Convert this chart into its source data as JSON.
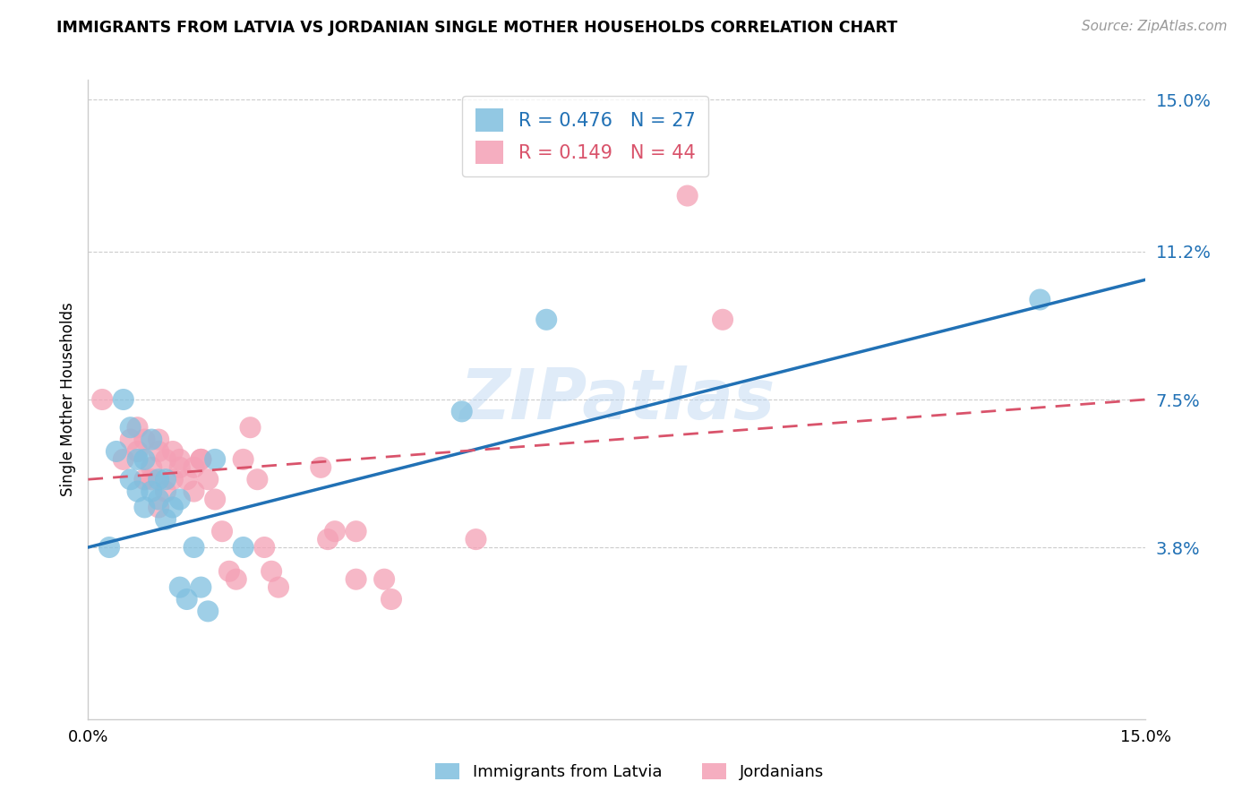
{
  "title": "IMMIGRANTS FROM LATVIA VS JORDANIAN SINGLE MOTHER HOUSEHOLDS CORRELATION CHART",
  "source": "Source: ZipAtlas.com",
  "ylabel": "Single Mother Households",
  "xlim": [
    0.0,
    0.15
  ],
  "ylim": [
    -0.01,
    0.155
  ],
  "plot_ylim": [
    -0.005,
    0.155
  ],
  "ytick_vals": [
    0.038,
    0.075,
    0.112,
    0.15
  ],
  "ytick_labels": [
    "3.8%",
    "7.5%",
    "11.2%",
    "15.0%"
  ],
  "blue_color": "#7fbfdf",
  "pink_color": "#f4a0b5",
  "blue_line_color": "#2171b5",
  "pink_line_color": "#d9536b",
  "legend_R_blue": "0.476",
  "legend_N_blue": "27",
  "legend_R_pink": "0.149",
  "legend_N_pink": "44",
  "legend_label_blue": "Immigrants from Latvia",
  "legend_label_pink": "Jordanians",
  "watermark": "ZIPatlas",
  "blue_points_x": [
    0.003,
    0.004,
    0.005,
    0.006,
    0.006,
    0.007,
    0.007,
    0.008,
    0.008,
    0.009,
    0.009,
    0.01,
    0.01,
    0.011,
    0.011,
    0.012,
    0.013,
    0.013,
    0.014,
    0.015,
    0.016,
    0.017,
    0.018,
    0.022,
    0.053,
    0.065,
    0.135
  ],
  "blue_points_y": [
    0.038,
    0.062,
    0.075,
    0.055,
    0.068,
    0.052,
    0.06,
    0.048,
    0.06,
    0.052,
    0.065,
    0.05,
    0.055,
    0.045,
    0.055,
    0.048,
    0.05,
    0.028,
    0.025,
    0.038,
    0.028,
    0.022,
    0.06,
    0.038,
    0.072,
    0.095,
    0.1
  ],
  "pink_points_x": [
    0.002,
    0.005,
    0.006,
    0.007,
    0.007,
    0.008,
    0.008,
    0.009,
    0.009,
    0.01,
    0.01,
    0.01,
    0.011,
    0.011,
    0.012,
    0.012,
    0.013,
    0.013,
    0.014,
    0.015,
    0.015,
    0.016,
    0.016,
    0.017,
    0.018,
    0.019,
    0.02,
    0.021,
    0.022,
    0.023,
    0.024,
    0.025,
    0.026,
    0.027,
    0.033,
    0.034,
    0.035,
    0.038,
    0.038,
    0.042,
    0.043,
    0.055,
    0.085,
    0.09
  ],
  "pink_points_y": [
    0.075,
    0.06,
    0.065,
    0.068,
    0.062,
    0.055,
    0.065,
    0.055,
    0.058,
    0.062,
    0.065,
    0.048,
    0.052,
    0.06,
    0.055,
    0.062,
    0.058,
    0.06,
    0.055,
    0.052,
    0.058,
    0.06,
    0.06,
    0.055,
    0.05,
    0.042,
    0.032,
    0.03,
    0.06,
    0.068,
    0.055,
    0.038,
    0.032,
    0.028,
    0.058,
    0.04,
    0.042,
    0.042,
    0.03,
    0.03,
    0.025,
    0.04,
    0.126,
    0.095
  ],
  "blue_line_x": [
    0.0,
    0.15
  ],
  "blue_line_y": [
    0.038,
    0.105
  ],
  "pink_line_x": [
    0.0,
    0.15
  ],
  "pink_line_y": [
    0.055,
    0.075
  ]
}
